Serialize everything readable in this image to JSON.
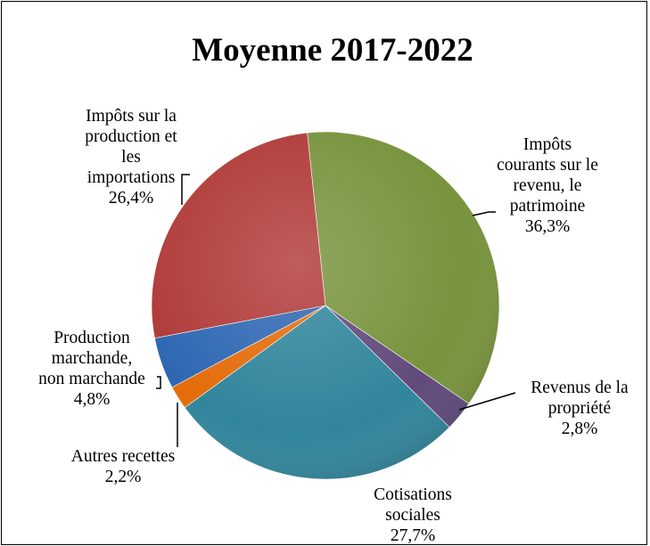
{
  "chart_data": {
    "type": "pie",
    "title": "Moyenne 2017-2022",
    "slices": [
      {
        "label": [
          "Impôts",
          "courants sur le",
          "revenu, le",
          "patrimoine"
        ],
        "value_label": "36,3%",
        "value": 36.3,
        "color": "#77933c"
      },
      {
        "label": [
          "Revenus de la",
          "propriété"
        ],
        "value_label": "2,8%",
        "value": 2.8,
        "color": "#604a7b"
      },
      {
        "label": [
          "Cotisations",
          "sociales"
        ],
        "value_label": "27,7%",
        "value": 27.7,
        "color": "#31859c"
      },
      {
        "label": [
          "Autres recettes"
        ],
        "value_label": "2,2%",
        "value": 2.2,
        "color": "#e46c0a"
      },
      {
        "label": [
          "Production",
          "marchande,",
          "non marchande"
        ],
        "value_label": "4,8%",
        "value": 4.8,
        "color": "#2e67b2"
      },
      {
        "label": [
          "Impôts sur la",
          "production et",
          "les",
          "importations"
        ],
        "value_label": "26,4%",
        "value": 26.4,
        "color": "#b03a38"
      }
    ]
  }
}
